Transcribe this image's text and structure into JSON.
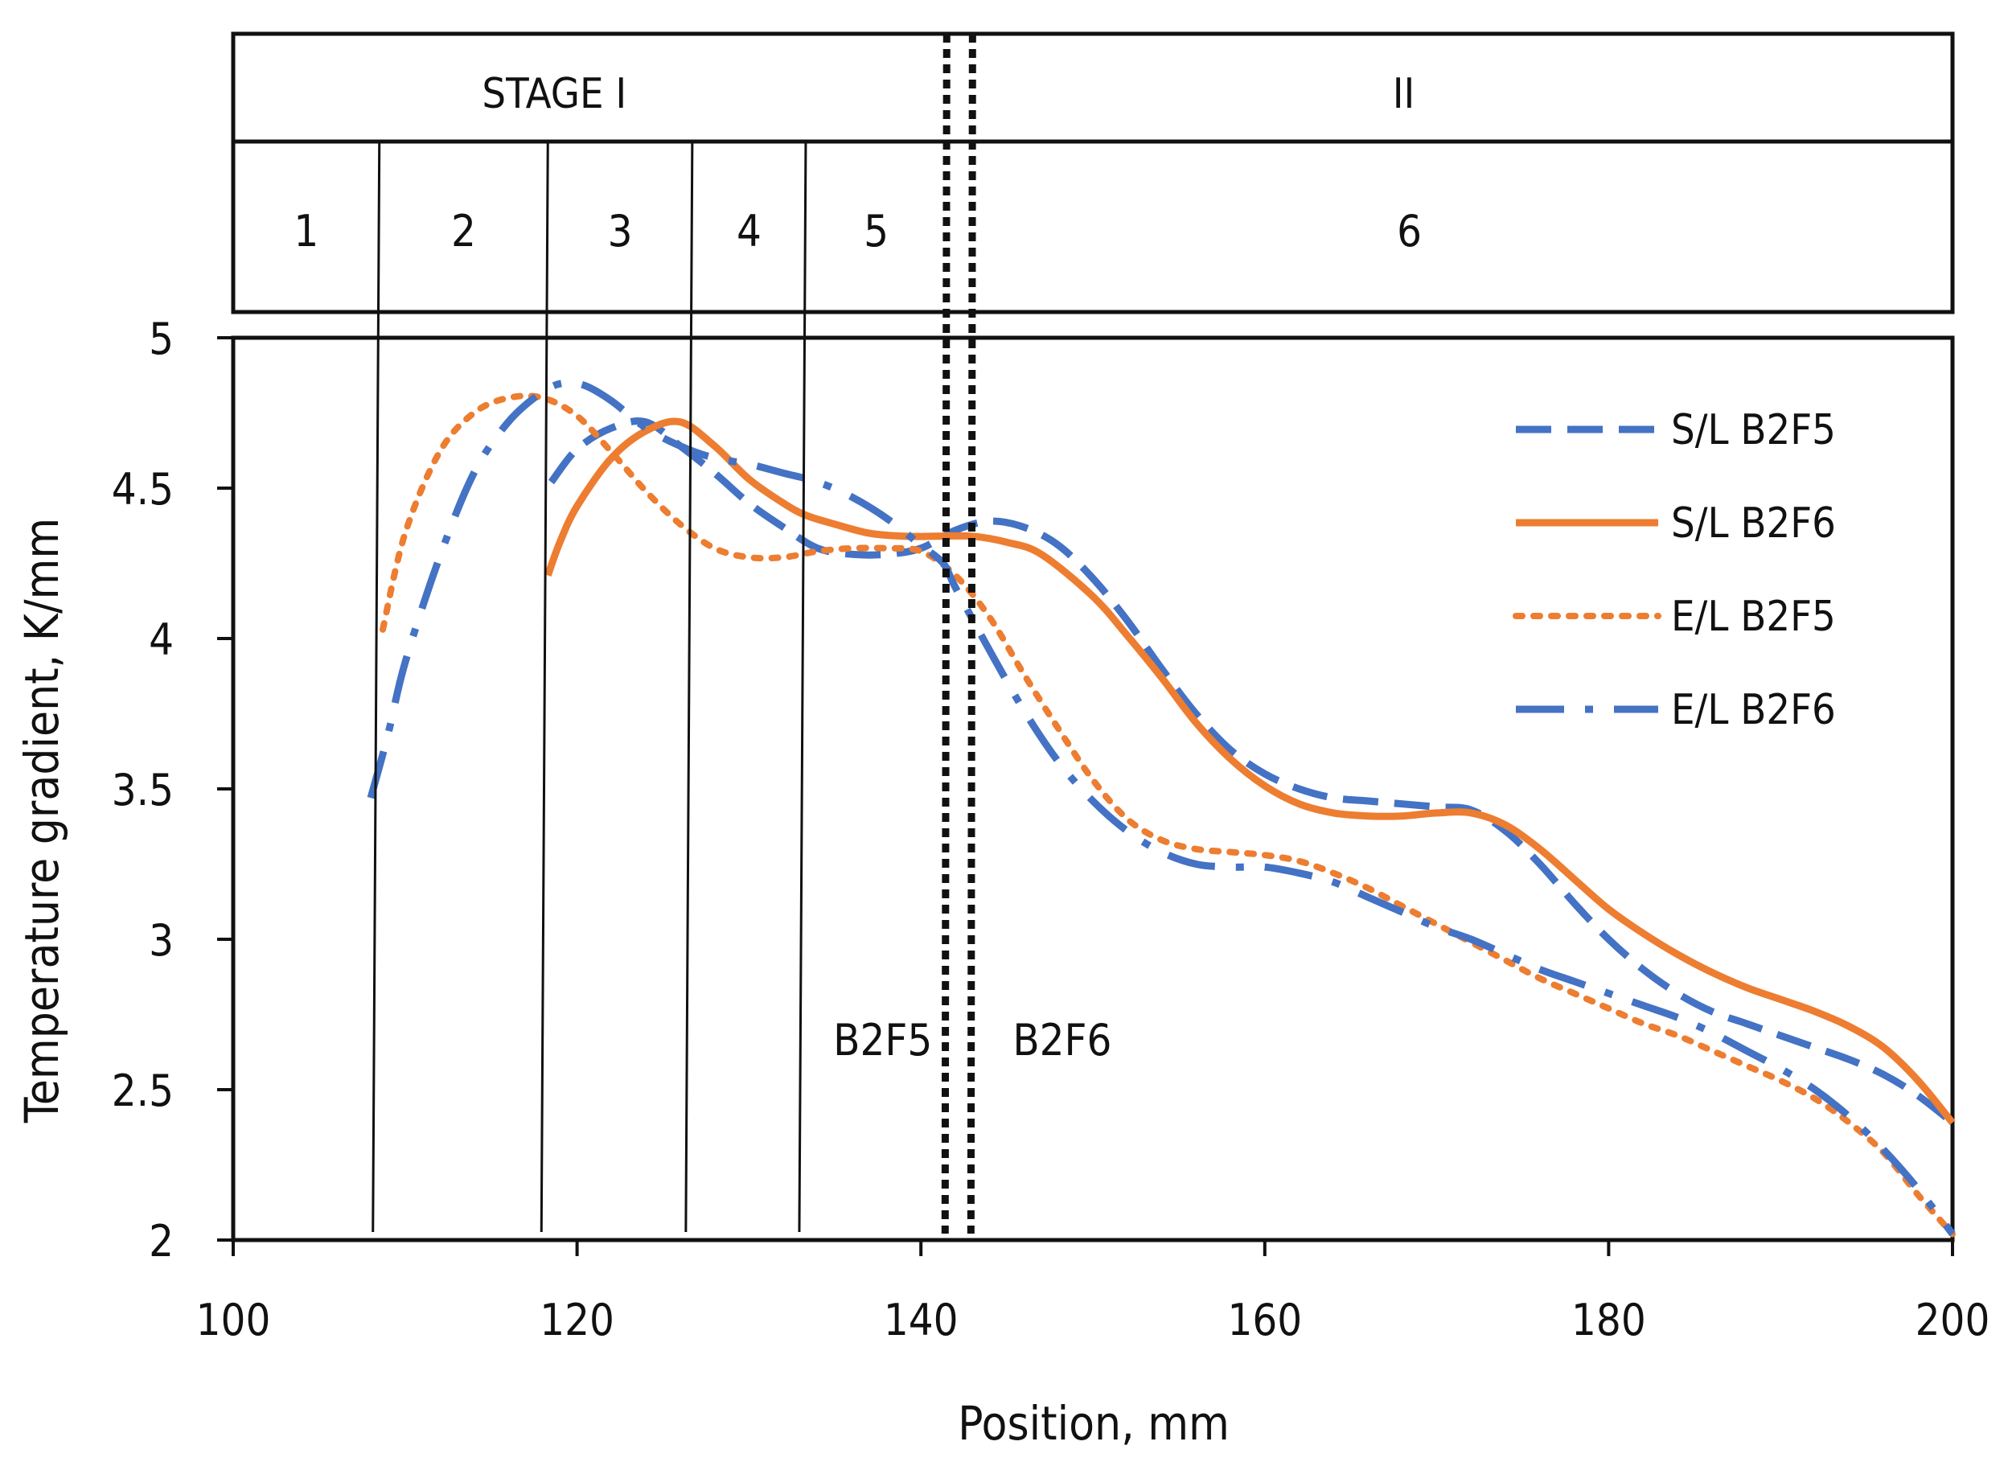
{
  "chart_data": {
    "type": "line",
    "title": "",
    "xlabel": "Position, mm",
    "ylabel": "Temperature gradient, K/mm",
    "xlim": [
      100,
      200
    ],
    "ylim": [
      2,
      5
    ],
    "x_ticks": [
      100,
      120,
      140,
      160,
      180,
      200
    ],
    "y_ticks": [
      2,
      2.5,
      3,
      3.5,
      4,
      4.5,
      5
    ],
    "legend_position": "top-right",
    "stages": [
      {
        "label": "STAGE I",
        "from": 100,
        "to": 141.5
      },
      {
        "label": "II",
        "from": 143,
        "to": 200
      }
    ],
    "regions": [
      {
        "label": "1",
        "from": 100,
        "to": 108.5
      },
      {
        "label": "2",
        "from": 108.5,
        "to": 118.3
      },
      {
        "label": "3",
        "from": 118.3,
        "to": 126.7
      },
      {
        "label": "4",
        "from": 126.7,
        "to": 133.3
      },
      {
        "label": "5",
        "from": 133.3,
        "to": 141.5
      },
      {
        "label": "6",
        "from": 141.5,
        "to": 200
      }
    ],
    "boundaries": [
      108.5,
      118.3,
      126.7,
      133.3
    ],
    "markers": [
      {
        "label": "B2F5",
        "x": 141.5
      },
      {
        "label": "B2F6",
        "x": 143
      }
    ],
    "series": [
      {
        "name": "S/L B2F5",
        "color": "#4472c4",
        "style": "dashed",
        "x": [
          118.5,
          120,
          122,
          124,
          126,
          128,
          130,
          132,
          134,
          136,
          138,
          140,
          142,
          144,
          146,
          148,
          150,
          152,
          154,
          156,
          158,
          160,
          162,
          164,
          166,
          168,
          170,
          172,
          174,
          176,
          178,
          180,
          182,
          184,
          186,
          188,
          190,
          192,
          194,
          196,
          198,
          200
        ],
        "values": [
          4.52,
          4.63,
          4.7,
          4.72,
          4.64,
          4.55,
          4.45,
          4.37,
          4.3,
          4.28,
          4.28,
          4.3,
          4.36,
          4.39,
          4.37,
          4.31,
          4.2,
          4.06,
          3.9,
          3.75,
          3.63,
          3.55,
          3.5,
          3.47,
          3.46,
          3.45,
          3.44,
          3.43,
          3.36,
          3.25,
          3.12,
          3.0,
          2.9,
          2.82,
          2.76,
          2.72,
          2.68,
          2.64,
          2.6,
          2.55,
          2.48,
          2.39
        ]
      },
      {
        "name": "S/L B2F6",
        "color": "#ed7d31",
        "style": "solid",
        "x": [
          118.3,
          119,
          120,
          122,
          124,
          126,
          128,
          130,
          132,
          133.3,
          135,
          137,
          139,
          141,
          143,
          145,
          147,
          150,
          152,
          154,
          156,
          158,
          160,
          162,
          164,
          166,
          168,
          170,
          172,
          174,
          176,
          178,
          180,
          182,
          184,
          186,
          188,
          190,
          192,
          194,
          196,
          198,
          200
        ],
        "values": [
          4.21,
          4.32,
          4.44,
          4.6,
          4.69,
          4.72,
          4.64,
          4.53,
          4.45,
          4.41,
          4.38,
          4.35,
          4.34,
          4.34,
          4.34,
          4.32,
          4.28,
          4.14,
          4.01,
          3.87,
          3.72,
          3.6,
          3.51,
          3.45,
          3.42,
          3.41,
          3.41,
          3.42,
          3.42,
          3.38,
          3.3,
          3.2,
          3.1,
          3.02,
          2.95,
          2.89,
          2.84,
          2.8,
          2.76,
          2.71,
          2.64,
          2.53,
          2.39
        ]
      },
      {
        "name": "E/L B2F5",
        "color": "#ed7d31",
        "style": "dotted",
        "x": [
          108.7,
          110,
          112,
          114,
          116,
          118,
          120,
          122,
          124,
          126,
          128,
          130,
          132,
          134,
          136,
          138,
          140,
          142,
          144,
          146,
          148,
          150,
          152,
          154,
          156,
          158,
          160,
          162,
          164,
          166,
          168,
          170,
          172,
          174,
          176,
          178,
          180,
          182,
          184,
          186,
          188,
          190,
          192,
          194,
          196,
          198,
          200
        ],
        "values": [
          4.03,
          4.35,
          4.62,
          4.75,
          4.8,
          4.8,
          4.74,
          4.62,
          4.49,
          4.38,
          4.3,
          4.27,
          4.27,
          4.29,
          4.3,
          4.3,
          4.29,
          4.21,
          4.07,
          3.88,
          3.7,
          3.53,
          3.4,
          3.33,
          3.3,
          3.29,
          3.28,
          3.26,
          3.22,
          3.17,
          3.11,
          3.05,
          2.99,
          2.93,
          2.87,
          2.82,
          2.77,
          2.72,
          2.68,
          2.63,
          2.58,
          2.53,
          2.47,
          2.39,
          2.29,
          2.15,
          2.02
        ]
      },
      {
        "name": "E/L B2F6",
        "color": "#4472c4",
        "style": "dashdot",
        "x": [
          108,
          109,
          110,
          112,
          114,
          116,
          118,
          119.3,
          120.5,
          122,
          124,
          126,
          128,
          130,
          132,
          134,
          136,
          138,
          140,
          141.3,
          142,
          144,
          146,
          148,
          150,
          152,
          154,
          156,
          158,
          160,
          162,
          164,
          166,
          168,
          170,
          172,
          174,
          176,
          178,
          180,
          182,
          184,
          186,
          188,
          190,
          192,
          194,
          196,
          198,
          200
        ],
        "values": [
          3.47,
          3.68,
          3.92,
          4.27,
          4.55,
          4.72,
          4.82,
          4.85,
          4.84,
          4.79,
          4.7,
          4.64,
          4.6,
          4.58,
          4.55,
          4.52,
          4.47,
          4.4,
          4.31,
          4.25,
          4.17,
          3.96,
          3.76,
          3.59,
          3.46,
          3.36,
          3.29,
          3.25,
          3.24,
          3.24,
          3.22,
          3.19,
          3.14,
          3.09,
          3.04,
          3.0,
          2.95,
          2.9,
          2.86,
          2.82,
          2.78,
          2.74,
          2.69,
          2.63,
          2.57,
          2.5,
          2.41,
          2.3,
          2.17,
          2.02
        ]
      }
    ]
  }
}
